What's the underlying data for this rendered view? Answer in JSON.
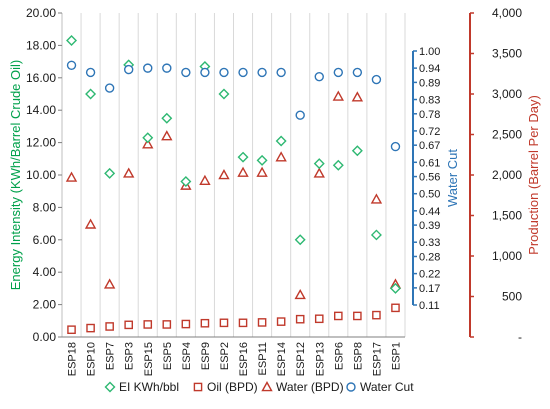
{
  "chart_data": {
    "type": "scatter",
    "categories": [
      "ESP18",
      "ESP10",
      "ESP7",
      "ESP3",
      "ESP15",
      "ESP5",
      "ESP4",
      "ESP9",
      "ESP2",
      "ESP16",
      "ESP11",
      "ESP14",
      "ESP12",
      "ESP13",
      "ESP6",
      "ESP8",
      "ESP17",
      "ESP1"
    ],
    "axes": {
      "left": {
        "label": "Energy Intensity (KWh/Barrel Crude Oil)",
        "range": [
          0,
          20
        ],
        "ticks": [
          "0.00",
          "2.00",
          "4.00",
          "6.00",
          "8.00",
          "10.00",
          "12.00",
          "14.00",
          "16.00",
          "18.00",
          "20.00"
        ],
        "color": "#00a14b"
      },
      "right": {
        "label": "Production (Barrel Per Day)",
        "range": [
          0,
          4000
        ],
        "ticks": [
          "-",
          "500",
          "1,000",
          "1,500",
          "2,000",
          "2,500",
          "3,000",
          "3,500",
          "4,000"
        ],
        "color": "#c0392b"
      },
      "water_cut": {
        "label": "Water Cut",
        "range": [
          0.11,
          1.0
        ],
        "ticks": [
          "0.11",
          "0.17",
          "0.22",
          "0.28",
          "0.33",
          "0.39",
          "0.44",
          "0.50",
          "0.56",
          "0.61",
          "0.67",
          "0.72",
          "0.78",
          "0.83",
          "0.89",
          "0.94",
          "1.00"
        ],
        "color": "#2e75b6"
      }
    },
    "grid": "vertical-only",
    "legend_position": "bottom",
    "series": [
      {
        "name": "EI KWh/bbl",
        "axis": "left",
        "marker": "diamond",
        "color": "#2eb872",
        "values": [
          18.3,
          15.0,
          10.1,
          16.8,
          12.3,
          13.5,
          9.6,
          16.7,
          15.0,
          11.1,
          10.9,
          12.1,
          6.0,
          10.7,
          10.6,
          11.5,
          6.3,
          3.0
        ]
      },
      {
        "name": "Oil (BPD)",
        "axis": "right",
        "marker": "square",
        "color": "#c0392b",
        "values": [
          90,
          110,
          130,
          150,
          155,
          155,
          160,
          170,
          175,
          175,
          180,
          190,
          220,
          225,
          260,
          260,
          270,
          360
        ]
      },
      {
        "name": "Water (BPD)",
        "axis": "right",
        "marker": "triangle",
        "color": "#c0392b",
        "values": [
          1970,
          1390,
          650,
          2020,
          2380,
          2480,
          1870,
          1930,
          2000,
          2030,
          2030,
          2220,
          520,
          2020,
          2970,
          2960,
          1700,
          650
        ]
      },
      {
        "name": "Water Cut",
        "axis": "water_cut",
        "marker": "circle",
        "color": "#2e75b6",
        "values": [
          0.95,
          0.925,
          0.87,
          0.935,
          0.94,
          0.94,
          0.925,
          0.925,
          0.925,
          0.925,
          0.925,
          0.925,
          0.775,
          0.91,
          0.925,
          0.925,
          0.9,
          0.665
        ]
      }
    ]
  }
}
